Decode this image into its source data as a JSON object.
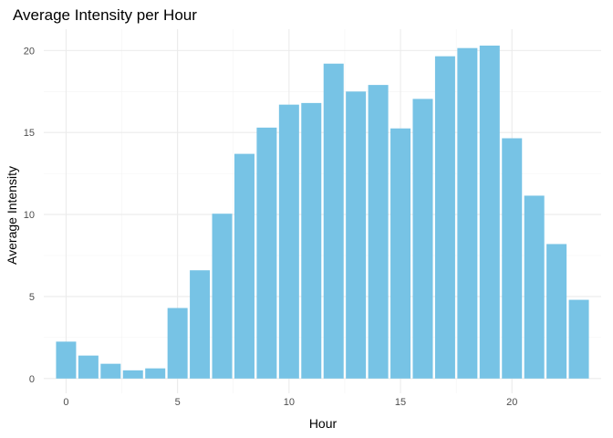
{
  "chart_data": {
    "type": "bar",
    "title": "Average Intensity per Hour",
    "xlabel": "Hour",
    "ylabel": "Average Intensity",
    "categories": [
      0,
      1,
      2,
      3,
      4,
      5,
      6,
      7,
      8,
      9,
      10,
      11,
      12,
      13,
      14,
      15,
      16,
      17,
      18,
      19,
      20,
      21,
      22,
      23
    ],
    "values": [
      2.25,
      1.4,
      0.9,
      0.5,
      0.62,
      4.3,
      6.6,
      10.05,
      13.7,
      15.3,
      16.7,
      16.8,
      19.2,
      17.5,
      17.9,
      15.25,
      17.05,
      19.65,
      20.15,
      20.3,
      14.65,
      11.15,
      8.2,
      4.8
    ],
    "xlim": [
      -1,
      24
    ],
    "ylim": [
      -0.9,
      21.3
    ],
    "xticks": [
      0,
      5,
      10,
      15,
      20
    ],
    "yticks": [
      0,
      5,
      10,
      15,
      20
    ],
    "grid": true,
    "legend": "none",
    "bar_color": "#77C3E5",
    "grid_major_color": "#EBEBEB",
    "grid_minor_color": "#F3F3F3"
  }
}
